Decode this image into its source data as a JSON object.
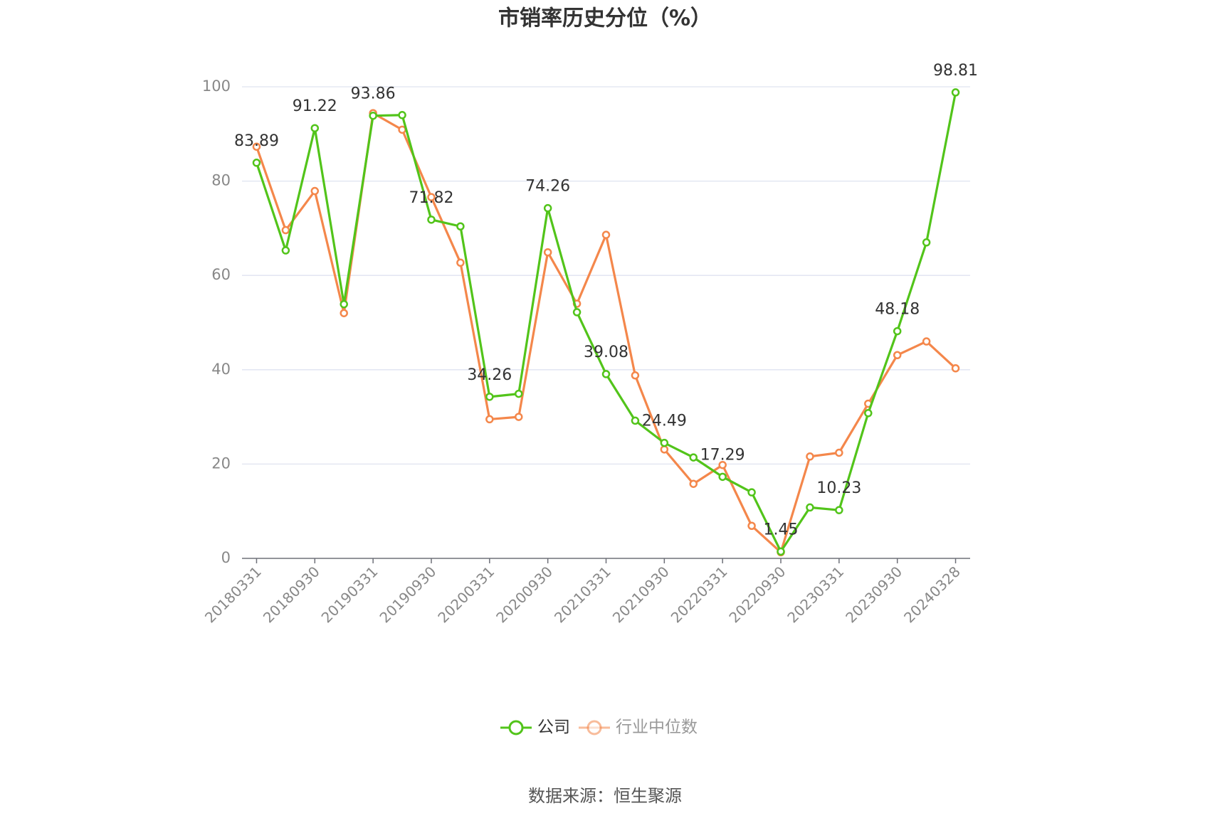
{
  "chart_data": {
    "type": "line",
    "title": "市销率历史分位（%）",
    "categories": [
      "20180331",
      null,
      "20180930",
      null,
      "20190331",
      null,
      "20190930",
      null,
      "20200331",
      null,
      "20200930",
      null,
      "20210331",
      null,
      "20210930",
      null,
      "20220331",
      null,
      "20220930",
      null,
      "20230331",
      null,
      "20230930",
      null,
      "20240328"
    ],
    "series": [
      {
        "name": "公司",
        "color": "#52c41a",
        "values": [
          83.89,
          65.3,
          91.22,
          53.9,
          93.86,
          94.0,
          71.82,
          70.4,
          34.26,
          34.9,
          74.26,
          52.2,
          39.08,
          29.2,
          24.49,
          21.4,
          17.29,
          14.0,
          1.45,
          10.8,
          10.23,
          30.8,
          48.18,
          67.0,
          98.81
        ],
        "value_labels": [
          "83.89",
          null,
          "91.22",
          null,
          "93.86",
          null,
          "71.82",
          null,
          "34.26",
          null,
          "74.26",
          null,
          "39.08",
          null,
          "24.49",
          null,
          "17.29",
          null,
          "1.45",
          null,
          "10.23",
          null,
          "48.18",
          null,
          "98.81"
        ]
      },
      {
        "name": "行业中位数",
        "color": "#f4874b",
        "values": [
          87.3,
          69.6,
          77.9,
          52.0,
          94.4,
          90.9,
          76.6,
          62.7,
          29.5,
          30.0,
          64.9,
          54.0,
          68.6,
          38.8,
          23.1,
          15.8,
          19.8,
          6.9,
          1.3,
          21.6,
          22.4,
          32.8,
          43.1,
          46.0,
          40.3
        ]
      }
    ],
    "ylim": [
      0,
      100
    ],
    "yticks": [
      0,
      20,
      40,
      60,
      80,
      100
    ],
    "grid": true,
    "source": "数据来源：恒生聚源"
  }
}
